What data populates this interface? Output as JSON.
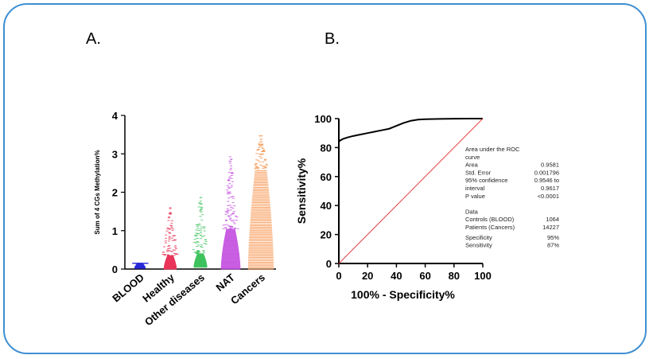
{
  "panels": {
    "a_label": "A.",
    "b_label": "B."
  },
  "chart_data": [
    {
      "type": "scatter",
      "title": "",
      "ylabel": "Sum of 4 CGs Methylation%",
      "ylim": [
        0,
        4
      ],
      "yticks": [
        "0",
        "1",
        "2",
        "3",
        "4"
      ],
      "categories": [
        "BLOOD",
        "Healthy",
        "Other diseases",
        "NAT",
        "Cancers"
      ],
      "series": [
        {
          "name": "BLOOD",
          "color": "#2b2bd9",
          "min": 0.02,
          "max": 0.15,
          "dense_top": 0.15
        },
        {
          "name": "Healthy",
          "color": "#e8365a",
          "min": 0.0,
          "max": 1.65,
          "dense_top": 0.35
        },
        {
          "name": "Other diseases",
          "color": "#3fc35e",
          "min": 0.05,
          "max": 1.95,
          "dense_top": 0.4
        },
        {
          "name": "NAT",
          "color": "#c34de0",
          "min": 0.0,
          "max": 2.95,
          "dense_top": 1.05
        },
        {
          "name": "Cancers",
          "color": "#f79550",
          "min": 0.0,
          "max": 3.5,
          "dense_top": 2.6
        }
      ]
    },
    {
      "type": "line",
      "xlabel": "100% - Specificity%",
      "ylabel": "Sensitivity%",
      "xlim": [
        0,
        100
      ],
      "ylim": [
        0,
        100
      ],
      "xticks": [
        "0",
        "20",
        "40",
        "60",
        "80",
        "100"
      ],
      "yticks": [
        "0",
        "20",
        "40",
        "60",
        "80",
        "100"
      ],
      "series": [
        {
          "name": "ROC",
          "color": "#000000",
          "x": [
            0,
            1,
            3,
            6,
            10,
            15,
            20,
            25,
            30,
            35,
            40,
            45,
            50,
            55,
            60,
            70,
            80,
            90,
            100
          ],
          "y": [
            84,
            85,
            86,
            87,
            88,
            89,
            90,
            91,
            92,
            93,
            95,
            97,
            98.5,
            99.3,
            99.6,
            99.8,
            99.9,
            100,
            100
          ]
        },
        {
          "name": "Reference",
          "color": "#e04040",
          "x": [
            0,
            100
          ],
          "y": [
            0,
            100
          ]
        }
      ],
      "annotation": [
        [
          "Area under the ROC",
          ""
        ],
        [
          "curve",
          ""
        ],
        [
          "Area",
          "0.9581"
        ],
        [
          "Std. Error",
          "0.001796"
        ],
        [
          "95% confidence",
          "0.9546 to"
        ],
        [
          "interval",
          "0.9617"
        ],
        [
          "P value",
          "<0.0001"
        ],
        [
          "",
          ""
        ],
        [
          "Data",
          ""
        ],
        [
          "Controls (BLOOD)",
          "1064"
        ],
        [
          "Patients (Cancers)",
          "14227"
        ],
        [
          "Specificity",
          "95%"
        ],
        [
          "Sensitivity",
          "87%"
        ]
      ]
    }
  ]
}
